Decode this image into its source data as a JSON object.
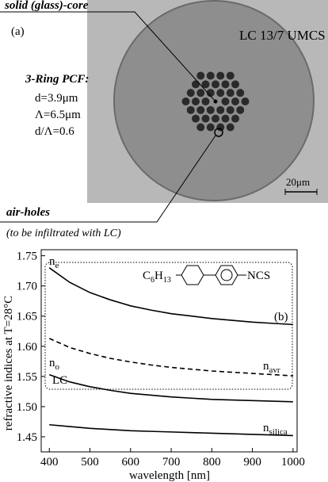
{
  "photo": {
    "core_label": "solid (glass)-core",
    "panel": "(a)",
    "sample": "LC 13/7 UMCS",
    "pcf_title": "3-Ring PCF:",
    "params": [
      "d=3.9μm",
      "Λ=6.5μm",
      "d/Λ=0.6"
    ],
    "scale": "20μm",
    "holes_label": "air-holes",
    "holes_note": "(to be infiltrated with LC)"
  },
  "chart_data": {
    "type": "line",
    "ylabel": "refractive indices at T=28°C",
    "xlabel": "wavelength [nm]",
    "panel": "(b)",
    "region_label": "LC",
    "molecule": {
      "left": [
        "C",
        "6",
        "H",
        "13"
      ],
      "right": "NCS"
    },
    "x": [
      400,
      450,
      500,
      550,
      600,
      650,
      700,
      750,
      800,
      850,
      900,
      950,
      1000
    ],
    "xlim": [
      380,
      1010
    ],
    "ylim": [
      1.425,
      1.76
    ],
    "xticks": [
      400,
      500,
      600,
      700,
      800,
      900,
      1000
    ],
    "yticks": [
      1.45,
      {
        "value": 1.5,
        "label": "1.50"
      },
      1.55,
      {
        "value": 1.6,
        "label": "1.60"
      },
      1.65,
      {
        "value": 1.7,
        "label": "1.70"
      },
      1.75
    ],
    "series": [
      {
        "name": "n",
        "sub": "e",
        "color": "#000000",
        "style": "solid",
        "values": [
          1.73,
          1.706,
          1.689,
          1.677,
          1.667,
          1.66,
          1.654,
          1.65,
          1.646,
          1.643,
          1.64,
          1.638,
          1.636
        ]
      },
      {
        "name": "n",
        "sub": "avr",
        "color": "#000000",
        "style": "dashed",
        "values": [
          1.613,
          1.598,
          1.588,
          1.58,
          1.574,
          1.569,
          1.565,
          1.562,
          1.559,
          1.557,
          1.555,
          1.553,
          1.551
        ]
      },
      {
        "name": "n",
        "sub": "o",
        "color": "#000000",
        "style": "solid",
        "values": [
          1.553,
          1.541,
          1.533,
          1.527,
          1.522,
          1.519,
          1.516,
          1.514,
          1.512,
          1.511,
          1.51,
          1.509,
          1.508
        ]
      },
      {
        "name": "n",
        "sub": "silica",
        "color": "#000000",
        "style": "solid",
        "values": [
          1.47,
          1.467,
          1.464,
          1.462,
          1.46,
          1.459,
          1.458,
          1.457,
          1.456,
          1.455,
          1.454,
          1.453,
          1.452
        ]
      }
    ]
  }
}
